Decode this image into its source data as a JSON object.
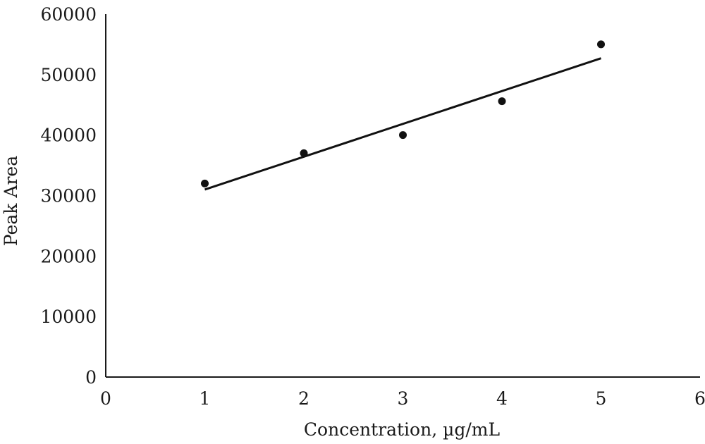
{
  "chart_data": {
    "type": "scatter",
    "title": "",
    "xlabel": "Concentration, µg/mL",
    "ylabel": "Peak Area",
    "xlim": [
      0,
      6
    ],
    "ylim": [
      0,
      60000
    ],
    "x_ticks": [
      "0",
      "1",
      "2",
      "3",
      "4",
      "5",
      "6"
    ],
    "y_ticks": [
      "0",
      "10000",
      "20000",
      "30000",
      "40000",
      "50000",
      "60000"
    ],
    "grid": false,
    "legend": "none",
    "series": [
      {
        "type": "scatter",
        "x": [
          1,
          2,
          3,
          4,
          5
        ],
        "y": [
          32000,
          37000,
          40000,
          45600,
          55000
        ]
      },
      {
        "type": "line",
        "x": [
          1,
          5
        ],
        "y": [
          31000,
          52700
        ]
      }
    ],
    "colors": {
      "marks": "#111111",
      "axis": "#1a1a1a"
    }
  }
}
